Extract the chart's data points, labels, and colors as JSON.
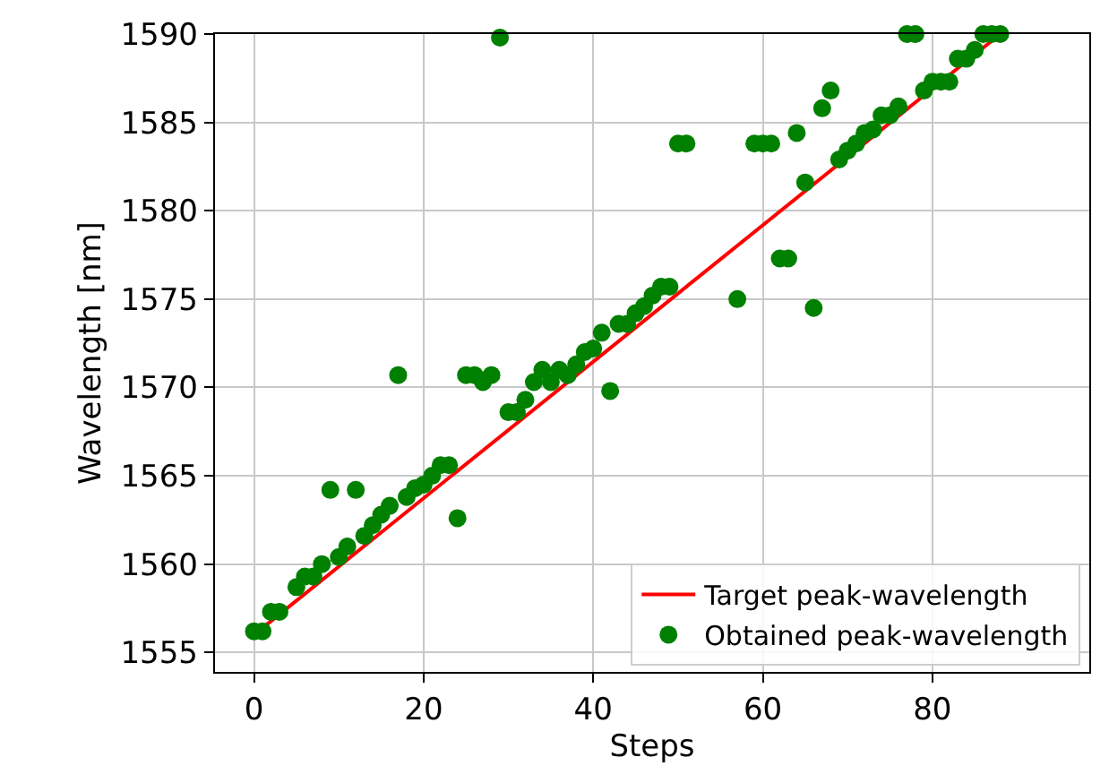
{
  "chart_data": {
    "type": "scatter",
    "xlabel": "Steps",
    "ylabel": "Wavelength [nm]",
    "xlim": [
      -4.6,
      98.5
    ],
    "ylim": [
      1553.9,
      1590
    ],
    "xticks": [
      0,
      20,
      40,
      60,
      80
    ],
    "yticks": [
      1555,
      1560,
      1565,
      1570,
      1575,
      1580,
      1585,
      1590
    ],
    "grid": true,
    "legend": "bottom right",
    "series": [
      {
        "name": "Target peak-wavelength",
        "type": "line",
        "color": "#ff0000",
        "marker": "none",
        "x": [
          0,
          88
        ],
        "values": [
          1556,
          1590
        ]
      },
      {
        "name": "Obtained peak-wavelength",
        "color": "#008000",
        "marker": "circle",
        "x": [
          0,
          1,
          2,
          3,
          5,
          6,
          7,
          8,
          9,
          10,
          11,
          12,
          13,
          14,
          15,
          16,
          17,
          18,
          19,
          20,
          21,
          22,
          23,
          24,
          25,
          26,
          27,
          28,
          29,
          30,
          31,
          32,
          33,
          34,
          35,
          36,
          37,
          38,
          39,
          40,
          41,
          42,
          43,
          44,
          45,
          46,
          47,
          48,
          49,
          50,
          51,
          57,
          59,
          60,
          61,
          62,
          63,
          64,
          65,
          66,
          67,
          68,
          69,
          70,
          71,
          72,
          73,
          74,
          75,
          76,
          77,
          78,
          79,
          80,
          81,
          82,
          83,
          84,
          85,
          86,
          87,
          88
        ],
        "values": [
          1556.2,
          1556.2,
          1557.3,
          1557.3,
          1558.7,
          1559.3,
          1559.3,
          1560.0,
          1564.2,
          1560.4,
          1561.0,
          1564.2,
          1561.6,
          1562.2,
          1562.8,
          1563.3,
          1570.7,
          1563.8,
          1564.3,
          1564.5,
          1565.0,
          1565.6,
          1565.6,
          1562.6,
          1570.7,
          1570.7,
          1570.3,
          1570.7,
          1589.8,
          1568.6,
          1568.6,
          1569.3,
          1570.3,
          1571.0,
          1570.3,
          1571.0,
          1570.7,
          1571.3,
          1572.0,
          1572.2,
          1573.1,
          1569.8,
          1573.6,
          1573.6,
          1574.2,
          1574.6,
          1575.2,
          1575.7,
          1575.7,
          1583.8,
          1583.8,
          1575.0,
          1583.8,
          1583.8,
          1583.8,
          1577.3,
          1577.3,
          1584.4,
          1581.6,
          1574.5,
          1585.8,
          1586.8,
          1582.9,
          1583.4,
          1583.8,
          1584.4,
          1584.6,
          1585.4,
          1585.4,
          1585.9,
          1590.0,
          1590.0,
          1586.8,
          1587.3,
          1587.3,
          1587.3,
          1588.6,
          1588.6,
          1589.1,
          1590.0,
          1590.0,
          1590.0
        ]
      }
    ]
  }
}
